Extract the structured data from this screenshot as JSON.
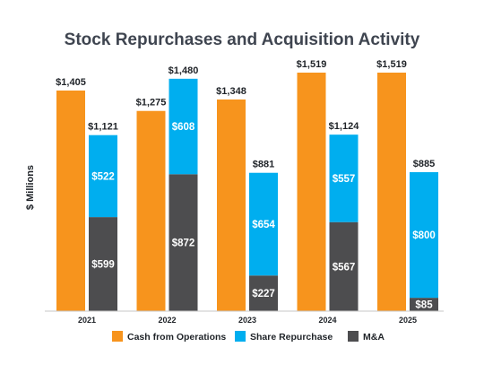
{
  "chart_data": {
    "type": "bar",
    "title": "Stock Repurchases and Acquisition Activity",
    "ylabel": "$ Millions",
    "ylim": [
      0,
      1600
    ],
    "grid": false,
    "legend_position": "bottom",
    "categories": [
      "2021",
      "2022",
      "2023",
      "2024",
      "2025"
    ],
    "series": [
      {
        "name": "Cash from Operations",
        "color": "#f7941d",
        "stack": "ops",
        "values": [
          1405,
          1275,
          1348,
          1519,
          1519
        ]
      },
      {
        "name": "M&A",
        "color": "#4d4d4f",
        "stack": "uses",
        "values": [
          599,
          872,
          227,
          567,
          85
        ]
      },
      {
        "name": "Share Repurchase",
        "color": "#00aeef",
        "stack": "uses",
        "values": [
          522,
          608,
          654,
          557,
          800
        ]
      }
    ],
    "legend_order": [
      "Cash from Operations",
      "Share Repurchase",
      "M&A"
    ],
    "data_labels": {
      "cash_totals": [
        "$1,405",
        "$1,275",
        "$1,348",
        "$1,519",
        "$1,519"
      ],
      "stack_totals": [
        "$1,121",
        "$1,480",
        "$881",
        "$1,124",
        "$885"
      ],
      "share_repurchase": [
        "$522",
        "$608",
        "$654",
        "$557",
        "$800"
      ],
      "ma": [
        "$599",
        "$872",
        "$227",
        "$567",
        "$85"
      ]
    }
  }
}
